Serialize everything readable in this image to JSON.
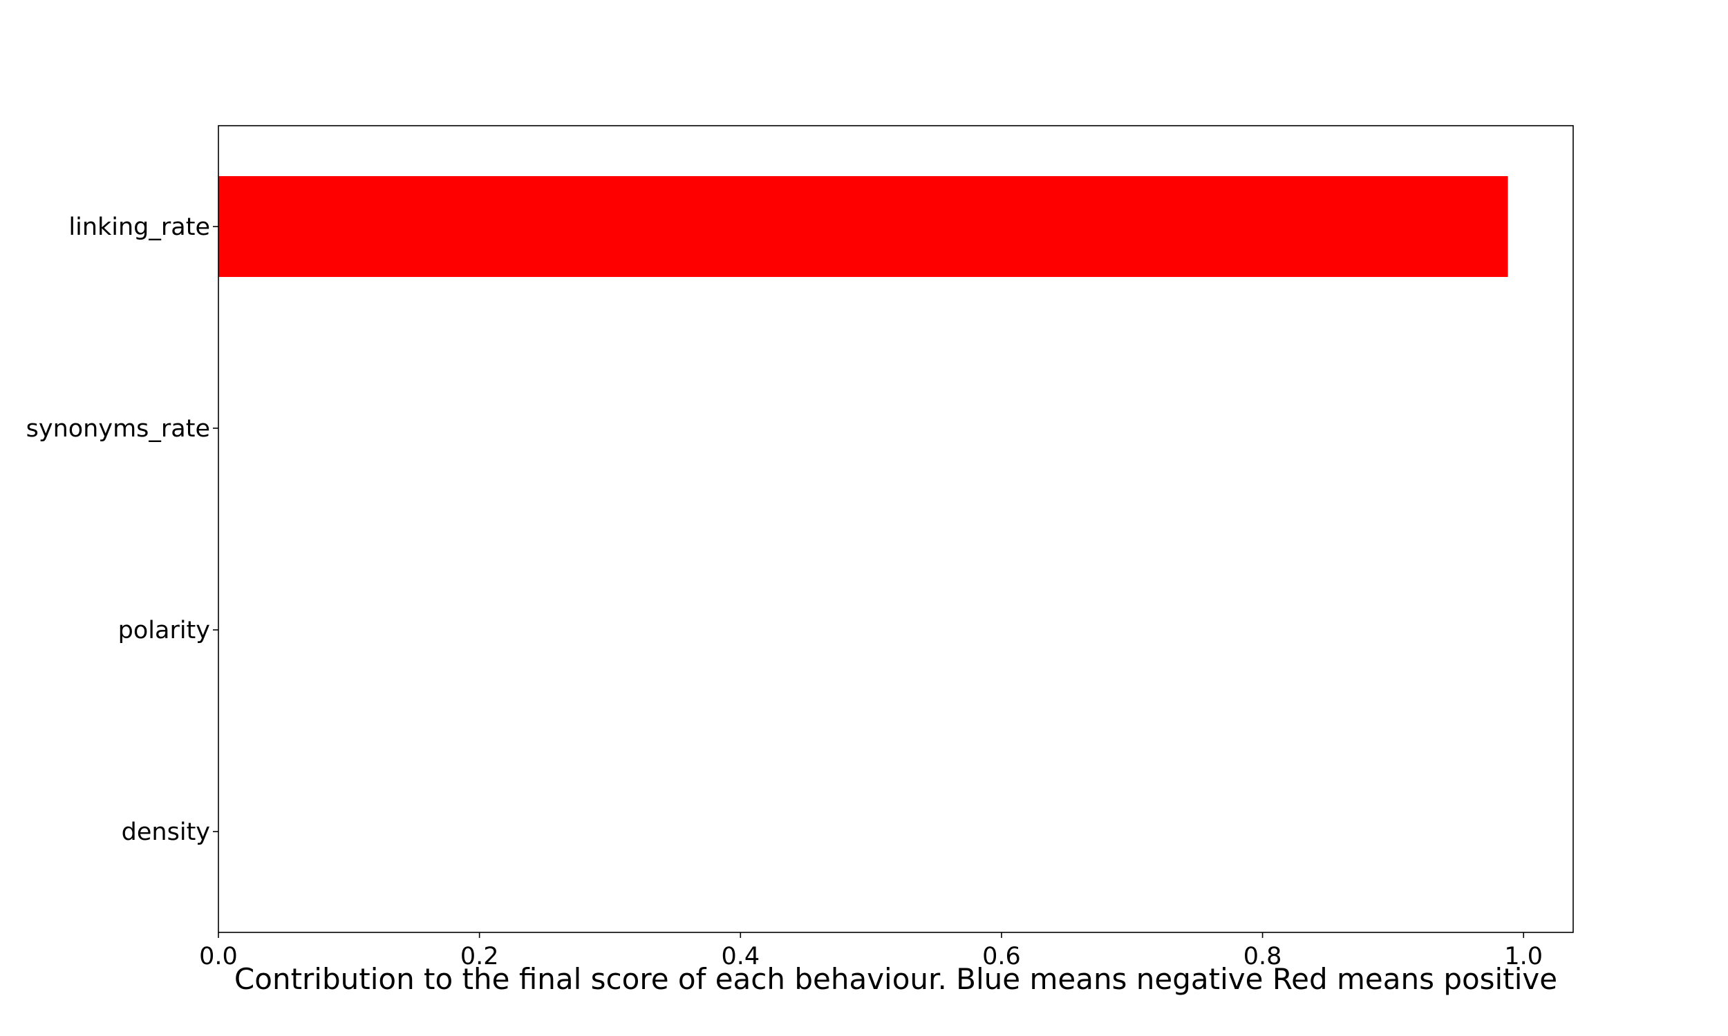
{
  "chart_data": {
    "type": "bar",
    "orientation": "horizontal",
    "categories": [
      "linking_rate",
      "synonyms_rate",
      "polarity",
      "density"
    ],
    "values": [
      0.988,
      0.0,
      0.0,
      0.0
    ],
    "bar_colors": [
      "#ff0000",
      "#ff0000",
      "#ff0000",
      "#ff0000"
    ],
    "title": "",
    "xlabel": "Contribution to the final score of each behaviour. Blue means negative Red means positive",
    "ylabel": "",
    "xlim": [
      0.0,
      1.038
    ],
    "xticks": [
      0.0,
      0.2,
      0.4,
      0.6,
      0.8,
      1.0
    ],
    "xtick_labels": [
      "0.0",
      "0.2",
      "0.4",
      "0.6",
      "0.8",
      "1.0"
    ],
    "grid": false
  }
}
